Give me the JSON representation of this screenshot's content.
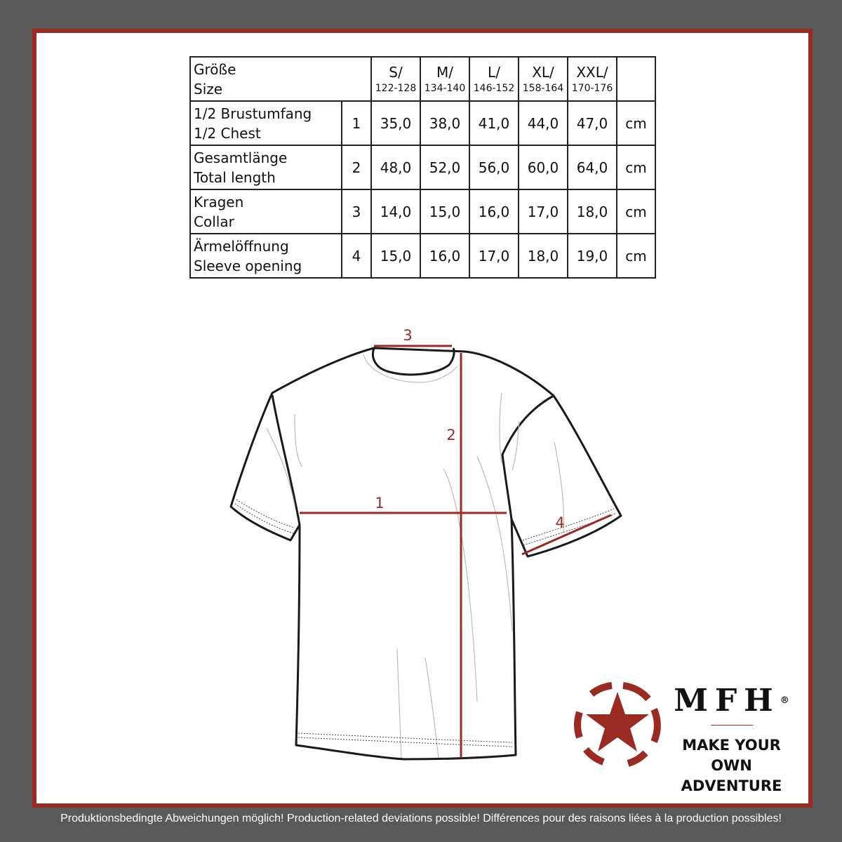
{
  "table": {
    "header": {
      "label_de": "Größe",
      "label_en": "Size",
      "sizes": [
        {
          "size": "S/",
          "range": "122-128"
        },
        {
          "size": "M/",
          "range": "134-140"
        },
        {
          "size": "L/",
          "range": "146-152"
        },
        {
          "size": "XL/",
          "range": "158-164"
        },
        {
          "size": "XXL/",
          "range": "170-176"
        }
      ]
    },
    "rows": [
      {
        "label_de": "1/2 Brustumfang",
        "label_en": "1/2 Chest",
        "num": "1",
        "values": [
          "35,0",
          "38,0",
          "41,0",
          "44,0",
          "47,0"
        ],
        "unit": "cm"
      },
      {
        "label_de": "Gesamtlänge",
        "label_en": "Total length",
        "num": "2",
        "values": [
          "48,0",
          "52,0",
          "56,0",
          "60,0",
          "64,0"
        ],
        "unit": "cm"
      },
      {
        "label_de": "Kragen",
        "label_en": "Collar",
        "num": "3",
        "values": [
          "14,0",
          "15,0",
          "16,0",
          "17,0",
          "18,0"
        ],
        "unit": "cm"
      },
      {
        "label_de": "Ärmelöffnung",
        "label_en": "Sleeve opening",
        "num": "4",
        "values": [
          "15,0",
          "16,0",
          "17,0",
          "18,0",
          "19,0"
        ],
        "unit": "cm"
      }
    ]
  },
  "diagram": {
    "labels": [
      "1",
      "2",
      "3",
      "4"
    ],
    "measure_color": "#9b2a22"
  },
  "logo": {
    "brand": "MFH",
    "registered": "®",
    "slogan_line1": "MAKE YOUR OWN",
    "slogan_line2": "ADVENTURE",
    "color": "#9b2a22"
  },
  "footer": "Produktionsbedingte Abweichungen möglich! Production-related deviations possible! Différences pour des raisons liées à la production possibles!"
}
